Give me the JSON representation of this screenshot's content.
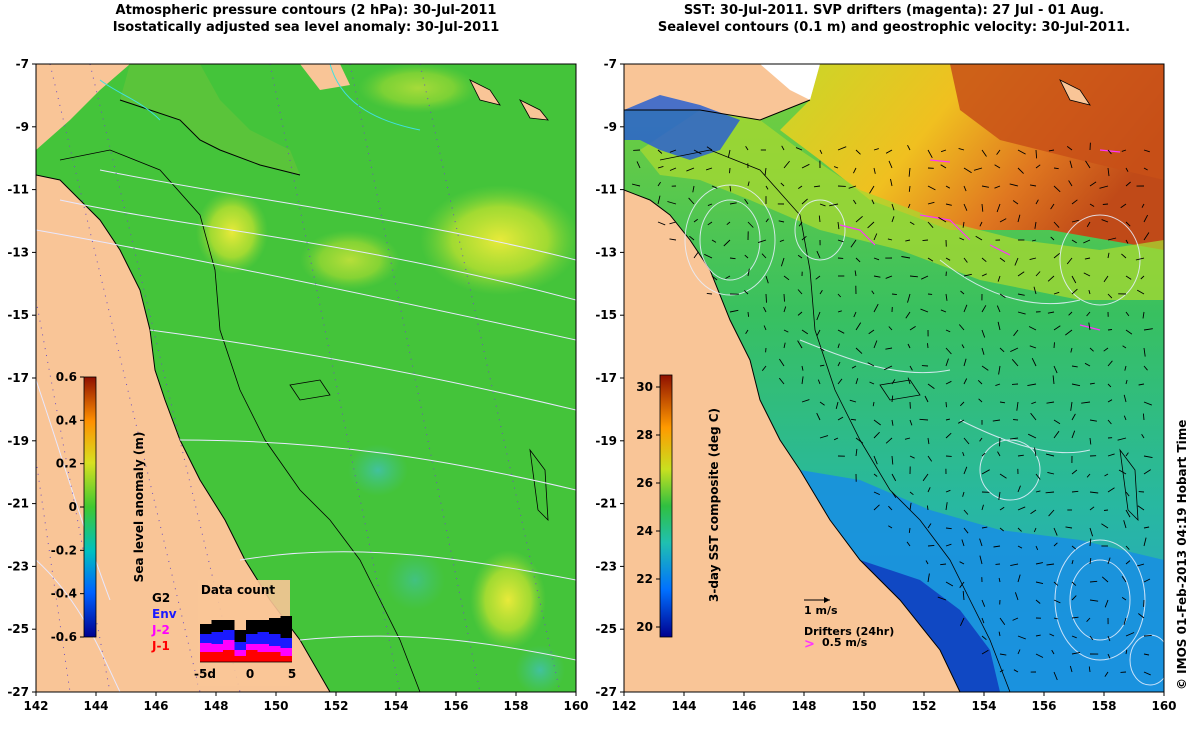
{
  "left_panel": {
    "title_line1": "Atmospheric pressure contours (2 hPa): 30-Jul-2011",
    "title_line2": "Isostatically adjusted sea level anomaly: 30-Jul-2011",
    "x_ticks": [
      "142",
      "144",
      "146",
      "148",
      "150",
      "152",
      "154",
      "156",
      "158",
      "160"
    ],
    "y_ticks": [
      "-7",
      "-9",
      "-11",
      "-13",
      "-15",
      "-17",
      "-19",
      "-21",
      "-23",
      "-25",
      "-27"
    ],
    "colorbar": {
      "label": "Sea level anomaly (m)",
      "ticks": [
        "0.6",
        "0.4",
        "0.2",
        "0",
        "-0.2",
        "-0.4",
        "-0.6"
      ],
      "range": [
        -0.6,
        0.6
      ]
    },
    "data_count": {
      "title": "Data count",
      "x_ticks": [
        "-5d",
        "0",
        "5"
      ],
      "legend": [
        {
          "label": "G2",
          "color": "#000000"
        },
        {
          "label": "Env",
          "color": "#1a1aff"
        },
        {
          "label": "J-2",
          "color": "#ff00ff"
        },
        {
          "label": "J-1",
          "color": "#ff0000"
        }
      ]
    }
  },
  "right_panel": {
    "title_line1": "SST: 30-Jul-2011. SVP drifters (magenta): 27 Jul - 01 Aug.",
    "title_line2": "Sealevel contours (0.1 m) and geostrophic velocity: 30-Jul-2011.",
    "x_ticks": [
      "142",
      "144",
      "146",
      "148",
      "150",
      "152",
      "154",
      "156",
      "158",
      "160"
    ],
    "y_ticks": [
      "-7",
      "-9",
      "-11",
      "-13",
      "-15",
      "-17",
      "-19",
      "-21",
      "-23",
      "-25",
      "-27"
    ],
    "colorbar": {
      "label": "3-day SST composite (deg C)",
      "ticks": [
        "30",
        "28",
        "26",
        "24",
        "22",
        "20"
      ],
      "range": [
        19,
        30
      ]
    },
    "legend_velocity": "1 m/s",
    "legend_drifters_title": "Drifters (24hr)",
    "legend_drifters_value": "0.5 m/s"
  },
  "credit": "© IMOS 01-Feb-2013 04:19 Hobart Time",
  "colors": {
    "land": "#f9c597",
    "sla_green": "#44c43a",
    "sst_warm": "#d45a1e",
    "sst_cool": "#1f8fd8",
    "drifter": "#ff33ff"
  }
}
